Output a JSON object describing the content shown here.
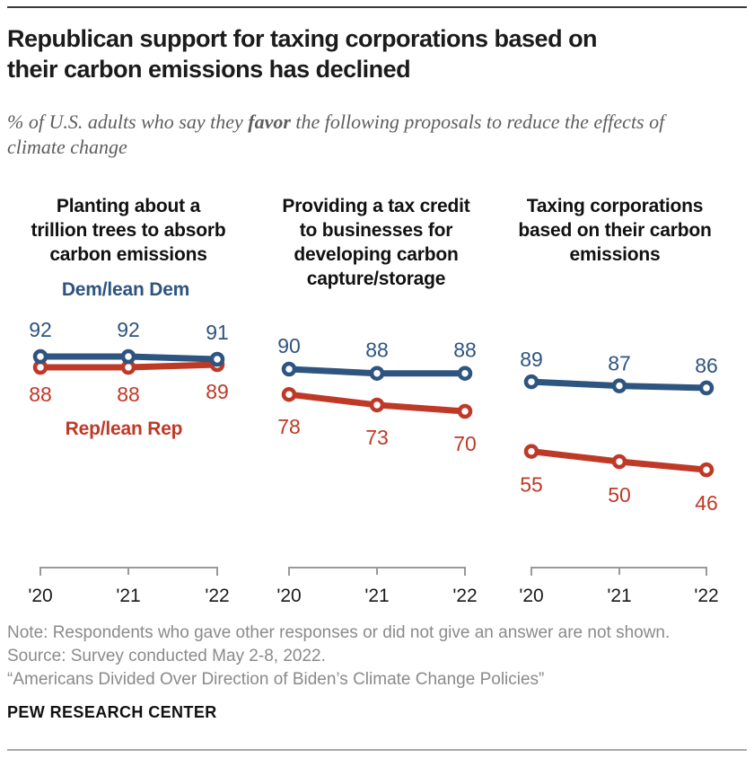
{
  "header": {
    "title": "Republican support for taxing corporations based on\ntheir carbon emissions has declined",
    "subtitle_prefix": "% of U.S. adults who say they ",
    "subtitle_emphasis": "favor",
    "subtitle_suffix": " the following proposals to reduce the effects of climate change"
  },
  "legend": {
    "dem_label": "Dem/lean Dem",
    "rep_label": "Rep/lean Rep"
  },
  "colors": {
    "dem": "#2e5480",
    "rep": "#bf3927",
    "axis": "#999999",
    "axis_label": "#1a1a1a"
  },
  "chart_data": [
    {
      "type": "line",
      "title": "Planting about a\ntrillion trees to absorb\ncarbon emissions",
      "x": [
        "'20",
        "'21",
        "'22"
      ],
      "series": [
        {
          "name": "Dem/lean Dem",
          "values": [
            92,
            92,
            91
          ]
        },
        {
          "name": "Rep/lean Rep",
          "values": [
            88,
            88,
            89
          ]
        }
      ]
    },
    {
      "type": "line",
      "title": "Providing a tax credit\nto businesses for\ndeveloping carbon\ncapture/storage",
      "x": [
        "'20",
        "'21",
        "'22"
      ],
      "series": [
        {
          "name": "Dem/lean Dem",
          "values": [
            90,
            88,
            88
          ]
        },
        {
          "name": "Rep/lean Rep",
          "values": [
            78,
            73,
            70
          ]
        }
      ]
    },
    {
      "type": "line",
      "title": "Taxing corporations\nbased on their carbon\nemissions",
      "x": [
        "'20",
        "'21",
        "'22"
      ],
      "series": [
        {
          "name": "Dem/lean Dem",
          "values": [
            89,
            87,
            86
          ]
        },
        {
          "name": "Rep/lean Rep",
          "values": [
            55,
            50,
            46
          ]
        }
      ]
    }
  ],
  "footer": {
    "note": "Note: Respondents who gave other responses or did not give an answer are not shown.",
    "source": "Source: Survey conducted May 2-8, 2022.",
    "quote": "“Americans Divided Over Direction of Biden’s Climate Change Policies”",
    "brand": "PEW RESEARCH CENTER"
  }
}
